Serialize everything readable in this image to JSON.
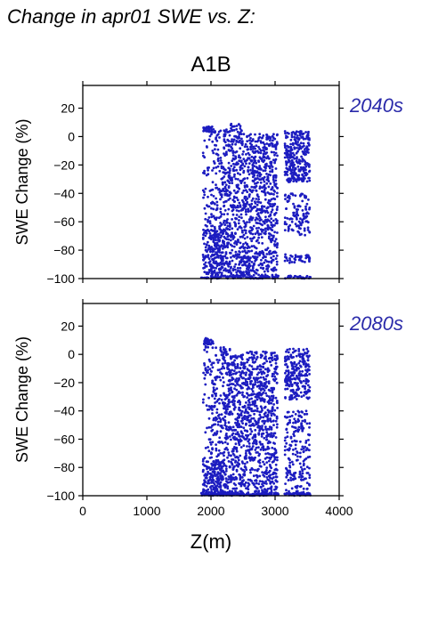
{
  "figure": {
    "title": "Change in apr01 SWE vs. Z:",
    "scenario": "A1B"
  },
  "colors": {
    "points": "#1c1cc0",
    "period_label": "#2a2aaa",
    "axis": "#000000"
  },
  "chart_data": [
    {
      "type": "scatter",
      "period_label": "2040s",
      "xlabel": "",
      "ylabel": "SWE Change (%)",
      "xlim": [
        0,
        4000
      ],
      "ylim": [
        -100,
        36
      ],
      "x_ticks": [
        0,
        1000,
        2000,
        3000,
        4000
      ],
      "y_ticks": [
        20,
        0,
        -20,
        -40,
        -60,
        -80,
        -100
      ],
      "x_tick_labels_shown": false,
      "grid": false,
      "points_sample": [
        [
          1900,
          7
        ],
        [
          1950,
          6
        ],
        [
          2000,
          5
        ],
        [
          2050,
          -5
        ],
        [
          2100,
          -20
        ],
        [
          2150,
          3
        ],
        [
          2200,
          -40
        ],
        [
          2250,
          -60
        ],
        [
          2300,
          8
        ],
        [
          2350,
          -30
        ],
        [
          2400,
          10
        ],
        [
          2450,
          -15
        ],
        [
          2500,
          -45
        ],
        [
          2550,
          0
        ],
        [
          2600,
          -70
        ],
        [
          2650,
          -25
        ],
        [
          2700,
          2
        ],
        [
          2750,
          -50
        ],
        [
          2800,
          -10
        ],
        [
          2850,
          -85
        ],
        [
          2900,
          -35
        ],
        [
          2950,
          -60
        ],
        [
          3000,
          -20
        ],
        [
          3050,
          0
        ],
        [
          3150,
          4
        ],
        [
          3200,
          -30
        ],
        [
          3250,
          -60
        ],
        [
          3300,
          3
        ],
        [
          3350,
          -10
        ],
        [
          3400,
          -40
        ],
        [
          3450,
          2
        ],
        [
          3500,
          -20
        ],
        [
          3550,
          -5
        ],
        [
          1950,
          -90
        ],
        [
          2000,
          -75
        ],
        [
          2100,
          -95
        ],
        [
          2200,
          -85
        ],
        [
          2050,
          -100
        ],
        [
          2300,
          -100
        ],
        [
          2500,
          -95
        ],
        [
          2700,
          -100
        ],
        [
          3000,
          -100
        ],
        [
          3300,
          -85
        ],
        [
          3500,
          -90
        ]
      ]
    },
    {
      "type": "scatter",
      "period_label": "2080s",
      "xlabel": "Z(m)",
      "ylabel": "SWE Change (%)",
      "xlim": [
        0,
        4000
      ],
      "ylim": [
        -100,
        36
      ],
      "x_ticks": [
        0,
        1000,
        2000,
        3000,
        4000
      ],
      "x_tick_labels": [
        "0",
        "1000",
        "2000",
        "3000",
        "4000"
      ],
      "y_ticks": [
        20,
        0,
        -20,
        -40,
        -60,
        -80,
        -100
      ],
      "grid": false,
      "points_sample": [
        [
          1900,
          12
        ],
        [
          1950,
          11
        ],
        [
          2000,
          8
        ],
        [
          2100,
          5
        ],
        [
          2200,
          0
        ],
        [
          2300,
          -5
        ],
        [
          2400,
          0
        ],
        [
          2500,
          -15
        ],
        [
          2600,
          -30
        ],
        [
          2700,
          -10
        ],
        [
          2800,
          -50
        ],
        [
          2900,
          -25
        ],
        [
          3000,
          -40
        ],
        [
          3100,
          2
        ],
        [
          3200,
          -30
        ],
        [
          3300,
          -60
        ],
        [
          3400,
          3
        ],
        [
          3500,
          -20
        ],
        [
          3550,
          -70
        ],
        [
          1950,
          -85
        ],
        [
          2000,
          -95
        ],
        [
          2050,
          -100
        ],
        [
          2100,
          -90
        ],
        [
          2200,
          -80
        ],
        [
          2300,
          -100
        ],
        [
          2400,
          -70
        ],
        [
          2500,
          -95
        ],
        [
          2600,
          -85
        ],
        [
          2700,
          -100
        ],
        [
          2800,
          -90
        ],
        [
          2900,
          -100
        ],
        [
          3000,
          -100
        ],
        [
          3200,
          -90
        ],
        [
          3350,
          -100
        ],
        [
          3500,
          -95
        ]
      ]
    }
  ]
}
